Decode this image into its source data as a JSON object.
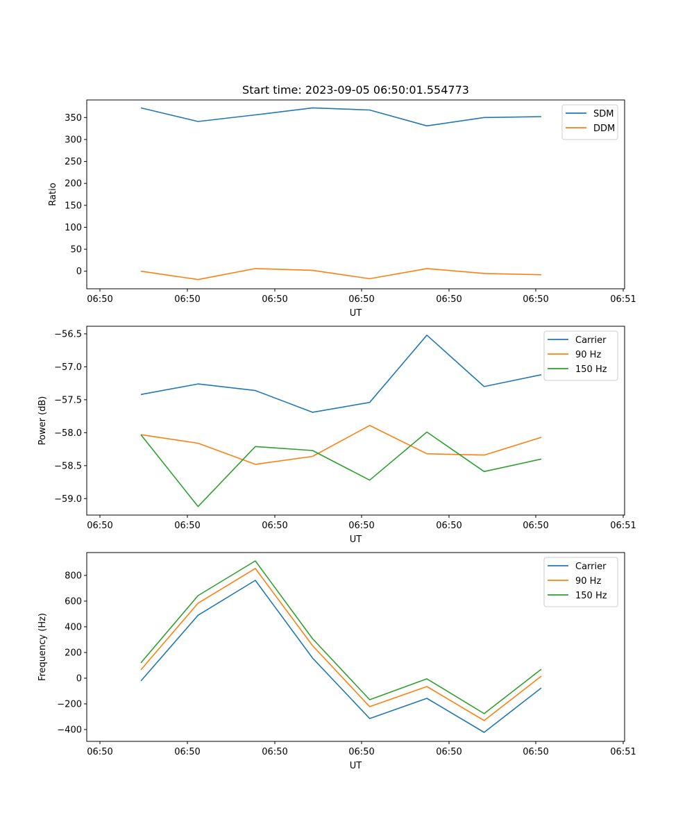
{
  "chart_data": [
    {
      "type": "line",
      "title": "Start time: 2023-09-05 06:50:01.554773",
      "xlabel": "UT",
      "ylabel": "Ratio",
      "x": [
        1,
        2,
        3,
        4,
        5,
        6,
        7,
        8
      ],
      "xlim": [
        0.15,
        9.2
      ],
      "xticks": [
        0.15,
        1.675,
        3.2,
        4.725,
        6.25,
        7.775,
        9.3
      ],
      "xtick_labels": [
        "06:50",
        "06:50",
        "06:50",
        "06:50",
        "06:50",
        "06:50",
        "06:51"
      ],
      "ylim": [
        -40,
        390
      ],
      "yticks": [
        0,
        50,
        100,
        150,
        200,
        250,
        300,
        350
      ],
      "ytick_labels": [
        "0",
        "50",
        "100",
        "150",
        "200",
        "250",
        "300",
        "350"
      ],
      "grid": false,
      "legend": "top-right",
      "series": [
        {
          "name": "SDM",
          "color": "#1f77b4",
          "values": [
            372,
            341,
            356,
            372,
            367,
            331,
            350,
            352
          ]
        },
        {
          "name": "DDM",
          "color": "#ff7f0e",
          "values": [
            0,
            -19,
            6,
            2,
            -17,
            6,
            -5,
            -8
          ]
        }
      ]
    },
    {
      "type": "line",
      "title": "",
      "xlabel": "UT",
      "ylabel": "Power (dB)",
      "x": [
        1,
        2,
        3,
        4,
        5,
        6,
        7,
        8
      ],
      "xlim": [
        0.15,
        9.2
      ],
      "xticks": [
        0.15,
        1.675,
        3.2,
        4.725,
        6.25,
        7.775,
        9.3
      ],
      "xtick_labels": [
        "06:50",
        "06:50",
        "06:50",
        "06:50",
        "06:50",
        "06:50",
        "06:51"
      ],
      "ylim": [
        -59.25,
        -56.385
      ],
      "yticks": [
        -59.0,
        -58.5,
        -58.0,
        -57.5,
        -57.0,
        -56.5
      ],
      "ytick_labels": [
        "−59.0",
        "−58.5",
        "−58.0",
        "−57.5",
        "−57.0",
        "−56.5"
      ],
      "grid": false,
      "legend": "top-right",
      "series": [
        {
          "name": "Carrier",
          "color": "#1f77b4",
          "values": [
            -57.42,
            -57.26,
            -57.36,
            -57.69,
            -57.54,
            -56.52,
            -57.3,
            -57.12
          ]
        },
        {
          "name": "90 Hz",
          "color": "#ff7f0e",
          "values": [
            -58.03,
            -58.16,
            -58.48,
            -58.36,
            -57.89,
            -58.32,
            -58.34,
            -58.07
          ]
        },
        {
          "name": "150 Hz",
          "color": "#2ca02c",
          "values": [
            -58.03,
            -59.12,
            -58.21,
            -58.27,
            -58.72,
            -57.99,
            -58.59,
            -58.4
          ]
        }
      ]
    },
    {
      "type": "line",
      "title": "",
      "xlabel": "UT",
      "ylabel": "Frequency (Hz)",
      "x": [
        1,
        2,
        3,
        4,
        5,
        6,
        7,
        8
      ],
      "xlim": [
        0.15,
        9.2
      ],
      "xticks": [
        0.15,
        1.675,
        3.2,
        4.725,
        6.25,
        7.775,
        9.3
      ],
      "xtick_labels": [
        "06:50",
        "06:50",
        "06:50",
        "06:50",
        "06:50",
        "06:50",
        "06:51"
      ],
      "ylim": [
        -492,
        978
      ],
      "yticks": [
        -400,
        -200,
        0,
        200,
        400,
        600,
        800
      ],
      "ytick_labels": [
        "−400",
        "−200",
        "0",
        "200",
        "400",
        "600",
        "800"
      ],
      "grid": false,
      "legend": "top-right",
      "series": [
        {
          "name": "Carrier",
          "color": "#1f77b4",
          "values": [
            -22,
            490,
            762,
            157,
            -314,
            -157,
            -422,
            -76
          ]
        },
        {
          "name": "90 Hz",
          "color": "#ff7f0e",
          "values": [
            65,
            584,
            854,
            254,
            -222,
            -65,
            -330,
            16
          ]
        },
        {
          "name": "150 Hz",
          "color": "#2ca02c",
          "values": [
            119,
            643,
            913,
            308,
            -168,
            -5,
            -276,
            70
          ]
        }
      ]
    }
  ]
}
